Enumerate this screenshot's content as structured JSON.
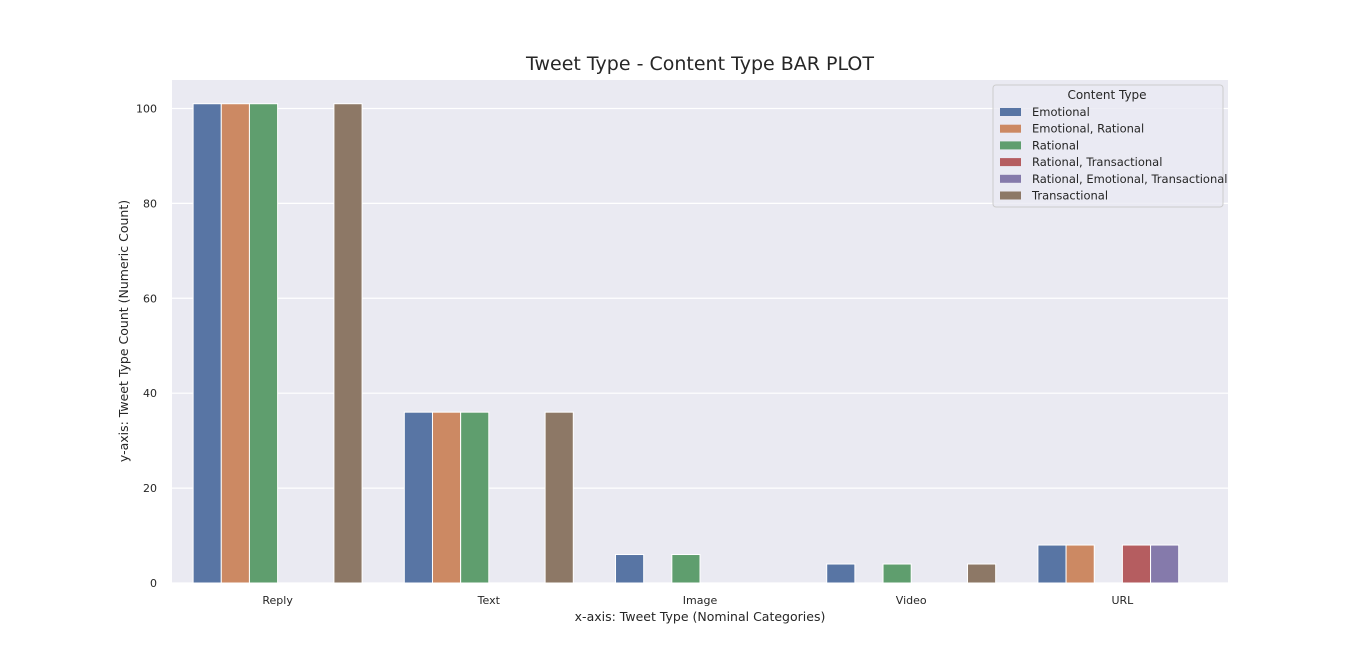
{
  "chart_data": {
    "type": "bar",
    "title": "Tweet Type - Content Type BAR PLOT",
    "xlabel": "x-axis: Tweet Type (Nominal Categories)",
    "ylabel": "y-axis: Tweet Type Count (Numeric Count)",
    "categories": [
      "Reply",
      "Text",
      "Image",
      "Video",
      "URL"
    ],
    "ylim": [
      0,
      106
    ],
    "yticks": [
      0,
      20,
      40,
      60,
      80,
      100
    ],
    "grid": true,
    "legend": {
      "title": "Content Type",
      "placement": "top-right"
    },
    "series": [
      {
        "name": "Emotional",
        "color": "#5875a4",
        "values": [
          101,
          36,
          6,
          4,
          8
        ]
      },
      {
        "name": "Emotional, Rational",
        "color": "#cc8963",
        "values": [
          101,
          36,
          null,
          null,
          8
        ]
      },
      {
        "name": "Rational",
        "color": "#5f9e6e",
        "values": [
          101,
          36,
          6,
          4,
          null
        ]
      },
      {
        "name": "Rational, Transactional",
        "color": "#b55d60",
        "values": [
          null,
          null,
          null,
          null,
          8
        ]
      },
      {
        "name": "Rational, Emotional, Transactional",
        "color": "#857aab",
        "values": [
          null,
          null,
          null,
          null,
          8
        ]
      },
      {
        "name": "Transactional",
        "color": "#8d7866",
        "values": [
          101,
          36,
          null,
          4,
          null
        ]
      }
    ]
  }
}
